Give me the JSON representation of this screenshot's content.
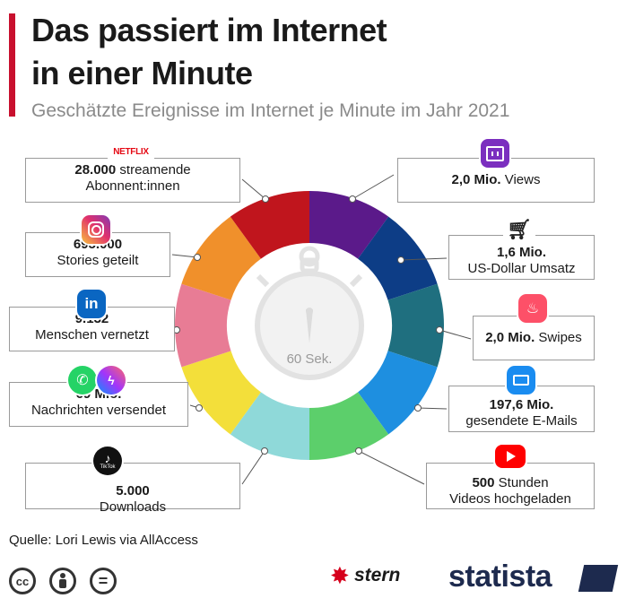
{
  "header": {
    "title_line1": "Das passiert im Internet",
    "title_line2": "in einer Minute",
    "subtitle": "Geschätzte Ereignisse im Internet je Minute im Jahr 2021"
  },
  "center": {
    "label": "60 Sek."
  },
  "chart_data": {
    "type": "pie",
    "title": "Das passiert im Internet in einer Minute",
    "subtitle": "Geschätzte Ereignisse im Internet je Minute im Jahr 2021",
    "style": "donut with 10 equal segments",
    "segments": [
      {
        "service": "Twitch",
        "value": "2,0 Mio.",
        "unit": "Views",
        "color": "#5b1a8a"
      },
      {
        "service": "Amazon",
        "value": "1,6 Mio.",
        "unit": "US-Dollar Umsatz",
        "color": "#0d3d86"
      },
      {
        "service": "Tinder",
        "value": "2,0 Mio.",
        "unit": "Swipes",
        "color": "#1f6f7f"
      },
      {
        "service": "E-Mail",
        "value": "197,6 Mio.",
        "unit": "gesendete E-Mails",
        "color": "#1e8fe0"
      },
      {
        "service": "YouTube",
        "value": "500",
        "unit": "Stunden Videos hochgeladen",
        "color": "#5ccf6b"
      },
      {
        "service": "TikTok",
        "value": "5.000",
        "unit": "Downloads",
        "color": "#8fd9d9"
      },
      {
        "service": "WhatsApp/Messenger",
        "value": "69 Mio.",
        "unit": "Nachrichten versendet",
        "color": "#f3df3a"
      },
      {
        "service": "LinkedIn",
        "value": "9.132",
        "unit": "Menschen vernetzt",
        "color": "#e87c95"
      },
      {
        "service": "Instagram",
        "value": "695.000",
        "unit": "Stories geteilt",
        "color": "#f0902b"
      },
      {
        "service": "Netflix",
        "value": "28.000",
        "unit": "streamende Abonnent:innen",
        "color": "#c0151d"
      }
    ]
  },
  "cards": [
    {
      "value": "28.000",
      "text": "streamende",
      "line2": "Abonnent:innen"
    },
    {
      "value": "695.000",
      "text": "",
      "line2": "Stories geteilt"
    },
    {
      "value": "9.132",
      "text": "",
      "line2": "Menschen vernetzt"
    },
    {
      "value": "69 Mio.",
      "text": "",
      "line2": "Nachrichten versendet"
    },
    {
      "value": "5.000",
      "text": "",
      "line2": "Downloads"
    },
    {
      "value": "2,0 Mio.",
      "text": "Views",
      "line2": ""
    },
    {
      "value": "1,6 Mio.",
      "text": "",
      "line2": "US-Dollar Umsatz"
    },
    {
      "value": "2,0 Mio.",
      "text": "Swipes",
      "line2": ""
    },
    {
      "value": "197,6 Mio.",
      "text": "",
      "line2": "gesendete E-Mails"
    },
    {
      "value": "500",
      "text": "Stunden",
      "line2": "Videos hochgeladen"
    }
  ],
  "icons": {
    "netflix": "NETFLIX",
    "tiktok": "TikTok"
  },
  "footer": {
    "source": "Quelle: Lori Lewis via AllAccess",
    "cc": "cc",
    "equal": "=",
    "stern": "stern",
    "statista": "statista"
  }
}
